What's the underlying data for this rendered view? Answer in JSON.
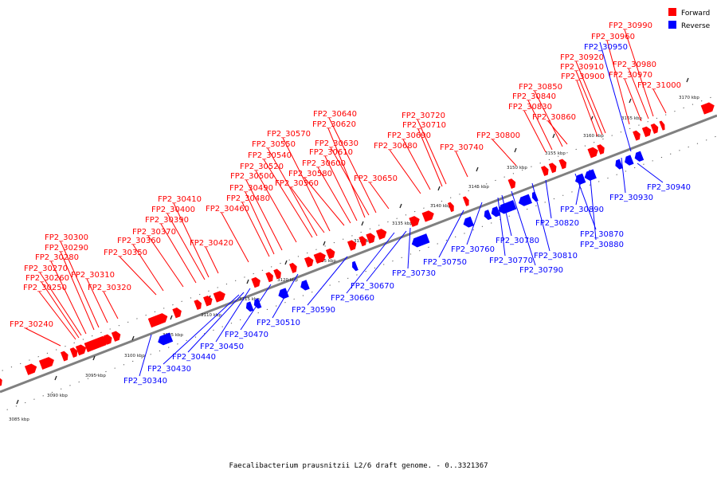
{
  "caption": "Faecalibacterium prausnitzii L2/6 draft genome. - 0..3321367",
  "legend": [
    {
      "label": "Forward",
      "color": "#ff0000"
    },
    {
      "label": "Reverse",
      "color": "#0000ff"
    }
  ],
  "colors": {
    "forward": "#ff0000",
    "reverse": "#0000ff",
    "backbone": "#808080"
  },
  "axis": {
    "start_kbp": 3085,
    "end_kbp": 3170,
    "step_kbp": 5,
    "tick_labels": [
      "3085 kbp",
      "3090 kbp",
      "3095 kbp",
      "3100 kbp",
      "3105 kbp",
      "3110 kbp",
      "3115 kbp",
      "3120 kbp",
      "3125 kbp",
      "3130 kbp",
      "3135 kbp",
      "3140 kbp",
      "3145 kbp",
      "3150 kbp",
      "3155 kbp",
      "3160 kbp",
      "3165 kbp",
      "3170 kbp"
    ]
  },
  "forward_genes": [
    "FP2_30240",
    "FP2_30250",
    "FP2_30260",
    "FP2_30270",
    "FP2_30280",
    "FP2_30290",
    "FP2_30300",
    "FP2_30310",
    "FP2_30320",
    "FP2_30350",
    "FP2_30360",
    "FP2_30370",
    "FP2_30390",
    "FP2_30400",
    "FP2_30410",
    "FP2_30420",
    "FP2_30460",
    "FP2_30480",
    "FP2_30490",
    "FP2_30500",
    "FP2_30520",
    "FP2_30540",
    "FP2_30550",
    "FP2_30560",
    "FP2_30570",
    "FP2_30580",
    "FP2_30600",
    "FP2_30610",
    "FP2_30620",
    "FP2_30630",
    "FP2_30640",
    "FP2_30650",
    "FP2_30680",
    "FP2_30690",
    "FP2_30710",
    "FP2_30720",
    "FP2_30740",
    "FP2_30800",
    "FP2_30830",
    "FP2_30840",
    "FP2_30850",
    "FP2_30860",
    "FP2_30900",
    "FP2_30910",
    "FP2_30920",
    "FP2_30960",
    "FP2_30970",
    "FP2_30980",
    "FP2_30990",
    "FP2_31000"
  ],
  "reverse_genes": [
    "FP2_30340",
    "FP2_30430",
    "FP2_30440",
    "FP2_30450",
    "FP2_30470",
    "FP2_30510",
    "FP2_30590",
    "FP2_30660",
    "FP2_30670",
    "FP2_30730",
    "FP2_30750",
    "FP2_30760",
    "FP2_30770",
    "FP2_30780",
    "FP2_30790",
    "FP2_30810",
    "FP2_30820",
    "FP2_30870",
    "FP2_30880",
    "FP2_30890",
    "FP2_30930",
    "FP2_30940",
    "FP2_30950"
  ]
}
